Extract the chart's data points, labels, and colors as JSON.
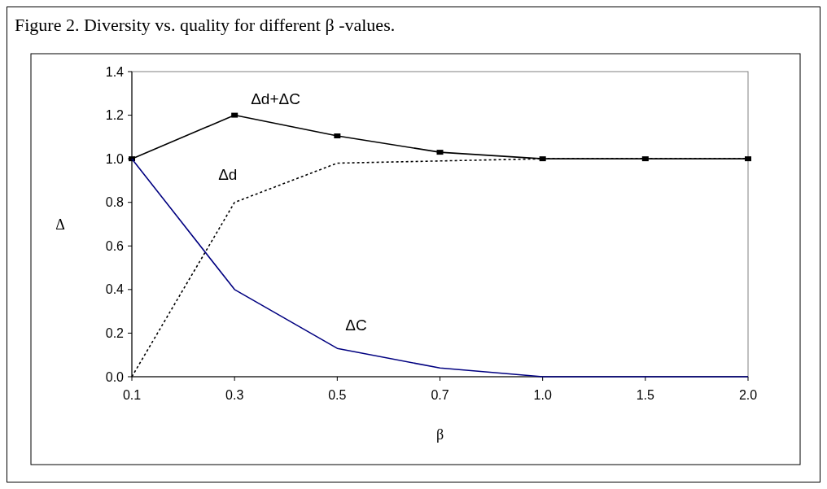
{
  "chart_data": {
    "type": "line",
    "title": "Figure 2.  Diversity vs. quality for different β -values.",
    "xlabel": "β",
    "ylabel": "Δ",
    "categories": [
      "0.1",
      "0.3",
      "0.5",
      "0.7",
      "1.0",
      "1.5",
      "2.0"
    ],
    "series": [
      {
        "name": "Δd+ΔC",
        "color": "#000000",
        "values": [
          1.0,
          1.2,
          1.105,
          1.03,
          1.0,
          1.0,
          1.0
        ],
        "marker": "square",
        "line_style": "solid"
      },
      {
        "name": "Δd",
        "color": "#000000",
        "values": [
          0.0,
          0.8,
          0.98,
          0.99,
          1.0,
          1.0,
          1.0
        ],
        "marker": "none",
        "line_style": "dotted"
      },
      {
        "name": "ΔC",
        "color": "#000080",
        "values": [
          1.0,
          0.4,
          0.13,
          0.04,
          0.0,
          0.0,
          0.0
        ],
        "marker": "none",
        "line_style": "solid"
      }
    ],
    "ylim": [
      0,
      1.4
    ],
    "yticks": [
      {
        "value": 0,
        "label": "0.0"
      },
      {
        "value": 0.2,
        "label": "0.2"
      },
      {
        "value": 0.4,
        "label": "0.4"
      },
      {
        "value": 0.6,
        "label": "0.6"
      },
      {
        "value": 0.8,
        "label": "0.8"
      },
      {
        "value": 1,
        "label": "1.0"
      },
      {
        "value": 1.2,
        "label": "1.2"
      },
      {
        "value": 1.4,
        "label": "1.4"
      }
    ],
    "grid": false
  }
}
